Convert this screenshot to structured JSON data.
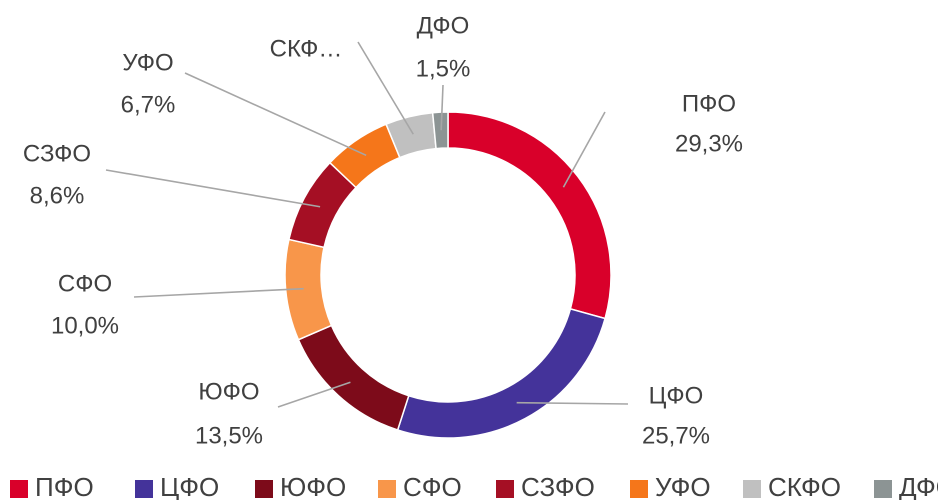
{
  "chart_data": {
    "type": "pie",
    "donut": true,
    "title": "",
    "legend_position": "bottom",
    "slices": [
      {
        "name": "ПФО",
        "label": "ПФО",
        "value": 29.3,
        "display": "29,3%",
        "color": "#d9002a"
      },
      {
        "name": "ЦФО",
        "label": "ЦФО",
        "value": 25.7,
        "display": "25,7%",
        "color": "#44339a"
      },
      {
        "name": "ЮФО",
        "label": "ЮФО",
        "value": 13.5,
        "display": "13,5%",
        "color": "#7d0b1a"
      },
      {
        "name": "СФО",
        "label": "СФО",
        "value": 10.0,
        "display": "10,0%",
        "color": "#f8964a"
      },
      {
        "name": "СЗФО",
        "label": "СЗФО",
        "value": 8.6,
        "display": "8,6%",
        "color": "#a50f24"
      },
      {
        "name": "УФО",
        "label": "УФО",
        "value": 6.7,
        "display": "6,7%",
        "color": "#f5761a"
      },
      {
        "name": "СКФО",
        "label": "СКФ…",
        "value": 4.7,
        "display": "",
        "color": "#c0c0c0"
      },
      {
        "name": "ДФО",
        "label": "ДФО",
        "value": 1.5,
        "display": "1,5%",
        "color": "#8c9494"
      }
    ]
  }
}
